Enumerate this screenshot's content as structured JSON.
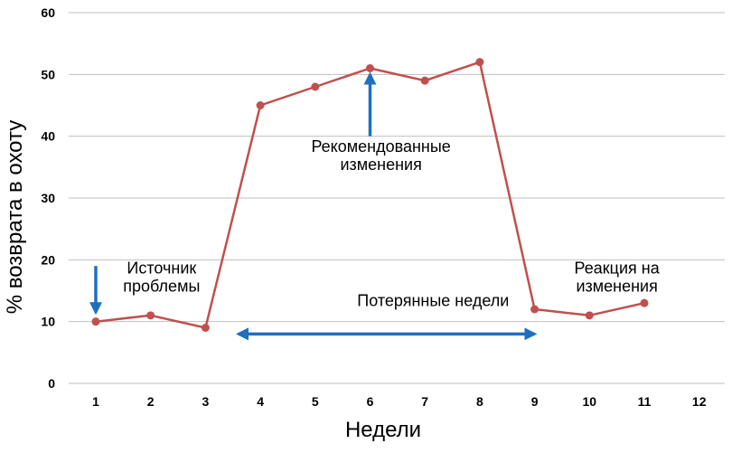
{
  "chart_data": {
    "type": "line",
    "title": "",
    "xlabel": "Недели",
    "ylabel": "% возврата в охоту",
    "ylim": [
      0,
      60
    ],
    "yticks": [
      0,
      10,
      20,
      30,
      40,
      50,
      60
    ],
    "xticks": [
      1,
      2,
      3,
      4,
      5,
      6,
      7,
      8,
      9,
      10,
      11,
      12
    ],
    "xlim": [
      1,
      12
    ],
    "grid": true,
    "legend": "none",
    "series": [
      {
        "x": [
          1,
          2,
          3,
          4,
          5,
          6,
          7,
          8,
          9,
          10,
          11
        ],
        "y": [
          10,
          11,
          9,
          45,
          48,
          51,
          49,
          52,
          12,
          11,
          13
        ],
        "color": "#c0504d"
      }
    ],
    "annotations": [
      {
        "id": "source",
        "lines": [
          "Источник",
          "проблемы"
        ],
        "arrow": {
          "direction": "down",
          "x": 1,
          "y_from": 19,
          "y_to": 11.5
        },
        "text_x": 2.2,
        "text_y": 17.8
      },
      {
        "id": "recommended",
        "lines": [
          "Рекомендованные",
          "изменения"
        ],
        "arrow": {
          "direction": "up",
          "x": 6,
          "y_from": 40,
          "y_to": 50
        },
        "text_x": 6.2,
        "text_y": 37.5
      },
      {
        "id": "lost",
        "lines": [
          "Потерянные недели"
        ],
        "arrow": {
          "direction": "both",
          "y": 8,
          "x_from": 3.6,
          "x_to": 9.0
        },
        "text_x": 7.15,
        "text_y": 12.5
      },
      {
        "id": "reaction",
        "lines": [
          "Реакция на",
          "изменения"
        ],
        "text_x": 10.5,
        "text_y": 17.8
      }
    ],
    "colors": {
      "line": "#c0504d",
      "arrow": "#1f6fbf",
      "grid": "#bfbfbf"
    }
  }
}
